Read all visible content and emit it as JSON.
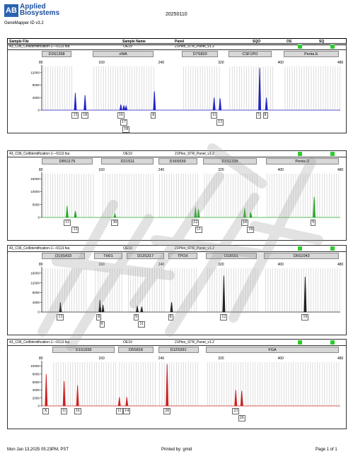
{
  "header": {
    "brand": [
      "Applied",
      "Biosystems"
    ],
    "logo_mark": "AB",
    "app": "GeneMapper ID v3.2",
    "title": "20250110"
  },
  "table_head": {
    "c1": "Sample File",
    "c2": "Sample Name",
    "c3": "Panel",
    "c4": "SQO",
    "c5": "OS",
    "c6": "SQ"
  },
  "panels": [
    {
      "file": "43_C06_CellIdentification-1---0113.fsa",
      "sample": "OE19",
      "panel": "21Plex_STR_Panel_v1.2",
      "color": "#2222cc",
      "markers": [
        [
          "D3S1358",
          80,
          122
        ],
        [
          "vWA",
          148,
          232
        ],
        [
          "D7S820",
          268,
          318
        ],
        [
          "CSF1PO",
          330,
          390
        ],
        [
          "Penta E",
          404,
          480
        ]
      ],
      "yticks": [
        "0",
        "4000",
        "8000",
        "12000"
      ],
      "ymax": 14000,
      "peaks": [
        [
          125,
          5500
        ],
        [
          138,
          4800
        ],
        [
          186,
          1800
        ],
        [
          190,
          1500
        ],
        [
          193,
          1300
        ],
        [
          231,
          6000
        ],
        [
          311,
          4000
        ],
        [
          319,
          3800
        ],
        [
          372,
          13500
        ],
        [
          381,
          4000
        ]
      ],
      "alleles": [
        [
          "15",
          125,
          0
        ],
        [
          "18",
          138,
          0
        ],
        [
          "16",
          186,
          0
        ],
        [
          "17",
          190,
          1
        ],
        [
          "18",
          193,
          2
        ],
        [
          "8",
          231,
          0
        ],
        [
          "11",
          311,
          0
        ],
        [
          "13",
          319,
          1
        ],
        [
          "5",
          372,
          0
        ],
        [
          "8",
          381,
          0
        ]
      ]
    },
    {
      "file": "43_C06_CellIdentification-1---0113.fsa",
      "sample": "OE19",
      "panel": "21Plex_STR_Panel_v1.2",
      "color": "#22aa22",
      "markers": [
        [
          "D8S1179",
          80,
          150
        ],
        [
          "D21S11",
          160,
          232
        ],
        [
          "D16S539",
          236,
          290
        ],
        [
          "D2S1338",
          296,
          370
        ],
        [
          "Penta D",
          380,
          480
        ]
      ],
      "yticks": [
        "0",
        "5000",
        "10000",
        "15000"
      ],
      "ymax": 17000,
      "peaks": [
        [
          114,
          4500
        ],
        [
          125,
          2500
        ],
        [
          178,
          1500
        ],
        [
          286,
          4000
        ],
        [
          290,
          3200
        ],
        [
          352,
          3500
        ],
        [
          360,
          2000
        ],
        [
          445,
          8000
        ]
      ],
      "alleles": [
        [
          "13",
          114,
          0
        ],
        [
          "15",
          125,
          1
        ],
        [
          "30",
          178,
          0
        ],
        [
          "12",
          286,
          0
        ],
        [
          "13",
          290,
          1
        ],
        [
          "18",
          352,
          0
        ],
        [
          "19",
          360,
          1
        ],
        [
          "9",
          445,
          0
        ]
      ]
    },
    {
      "file": "43_C06_CellIdentification-1---0113.fsa",
      "sample": "OE19",
      "panel": "21Plex_STR_Panel_v1.2",
      "color": "#222222",
      "markers": [
        [
          "D19S433",
          80,
          140
        ],
        [
          "TH01",
          150,
          190
        ],
        [
          "D13S317",
          194,
          246
        ],
        [
          "TPOX",
          250,
          290
        ],
        [
          "D18S51",
          300,
          370
        ],
        [
          "D6S1043",
          378,
          480
        ]
      ],
      "yticks": [
        "0",
        "4000",
        "8000",
        "12000",
        "16000"
      ],
      "ymax": 18000,
      "peaks": [
        [
          105,
          4000
        ],
        [
          158,
          5000
        ],
        [
          162,
          3000
        ],
        [
          208,
          2500
        ],
        [
          214,
          2200
        ],
        [
          254,
          4000
        ],
        [
          324,
          15000
        ],
        [
          433,
          14500
        ]
      ],
      "alleles": [
        [
          "13",
          105,
          0
        ],
        [
          "8",
          158,
          0
        ],
        [
          "9",
          162,
          1
        ],
        [
          "9",
          208,
          0
        ],
        [
          "11",
          214,
          1
        ],
        [
          "8",
          254,
          0
        ],
        [
          "12",
          324,
          0
        ],
        [
          "19",
          433,
          0
        ]
      ]
    },
    {
      "file": "43_C06_CellIdentification-1---0113.fsa",
      "sample": "OE19",
      "panel": "21Plex_STR_Panel_v1.2",
      "color": "#cc2222",
      "markers": [
        [
          "D1S1656",
          94,
          180
        ],
        [
          "D5S818",
          182,
          232
        ],
        [
          "D12S391",
          236,
          292
        ],
        [
          "FGA",
          300,
          480
        ]
      ],
      "yticks": [
        "0",
        "2000",
        "4000",
        "6000",
        "8000",
        "10000"
      ],
      "ymax": 11000,
      "peaks": [
        [
          86,
          8000
        ],
        [
          110,
          6200
        ],
        [
          128,
          5200
        ],
        [
          184,
          2200
        ],
        [
          194,
          2200
        ],
        [
          248,
          10500
        ],
        [
          340,
          4000
        ],
        [
          348,
          3800
        ]
      ],
      "alleles": [
        [
          "X",
          86,
          0
        ],
        [
          "11",
          110,
          0
        ],
        [
          "16",
          128,
          0
        ],
        [
          "11",
          184,
          0
        ],
        [
          "14",
          194,
          0
        ],
        [
          "20",
          248,
          0
        ],
        [
          "23",
          340,
          0
        ],
        [
          "26",
          348,
          1
        ]
      ]
    }
  ],
  "xticks": [
    "80",
    "160",
    "240",
    "320",
    "400",
    "480"
  ],
  "footer": {
    "date": "Mon Jan 13,2025 05:23PM, PST",
    "printed": "Printed by: gmid",
    "page": "Page 1 of 1"
  }
}
